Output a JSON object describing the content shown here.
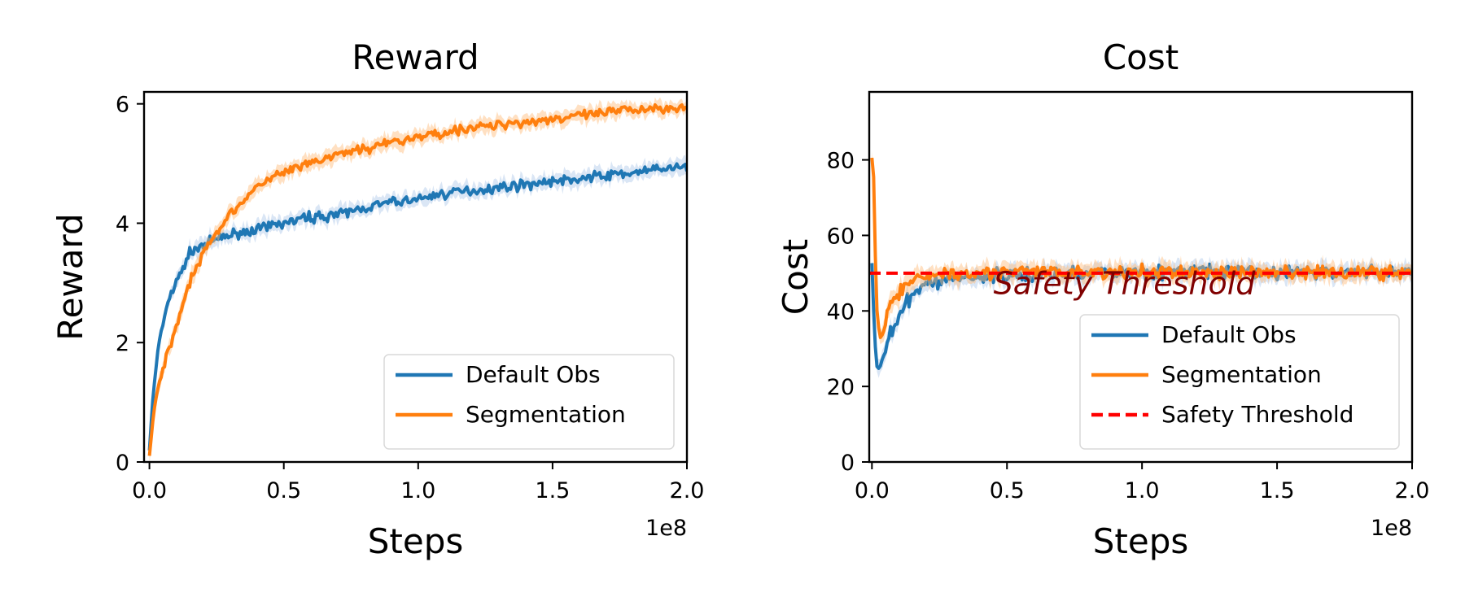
{
  "chart_data": [
    {
      "type": "line",
      "title": "Reward",
      "xlabel": "Steps",
      "ylabel": "Reward",
      "x_offset_label": "1e8",
      "xlim": [
        -0.02,
        2.0
      ],
      "ylim": [
        0,
        6.2
      ],
      "xticks": [
        0.0,
        0.5,
        1.0,
        1.5,
        2.0
      ],
      "xtick_labels": [
        "0.0",
        "0.5",
        "1.0",
        "1.5",
        "2.0"
      ],
      "yticks": [
        0,
        2,
        4,
        6
      ],
      "ytick_labels": [
        "0",
        "2",
        "4",
        "6"
      ],
      "grid": false,
      "legend_position": "lower right",
      "series": [
        {
          "name": "Default Obs",
          "color": "#1f77b4",
          "band_color": "#aec7e8",
          "x": [
            0.0,
            0.01,
            0.02,
            0.03,
            0.05,
            0.07,
            0.1,
            0.13,
            0.15,
            0.18,
            0.2,
            0.25,
            0.3,
            0.35,
            0.4,
            0.45,
            0.5,
            0.6,
            0.7,
            0.8,
            0.9,
            1.0,
            1.1,
            1.2,
            1.3,
            1.4,
            1.5,
            1.6,
            1.7,
            1.8,
            1.9,
            2.0
          ],
          "y": [
            0.2,
            0.9,
            1.4,
            1.8,
            2.3,
            2.7,
            3.0,
            3.3,
            3.5,
            3.6,
            3.65,
            3.72,
            3.8,
            3.85,
            3.9,
            3.95,
            4.0,
            4.1,
            4.15,
            4.25,
            4.35,
            4.4,
            4.5,
            4.55,
            4.6,
            4.65,
            4.7,
            4.75,
            4.8,
            4.85,
            4.9,
            4.95
          ]
        },
        {
          "name": "Segmentation",
          "color": "#ff7f0e",
          "band_color": "#ffbb78",
          "x": [
            0.0,
            0.01,
            0.02,
            0.03,
            0.05,
            0.07,
            0.1,
            0.13,
            0.15,
            0.18,
            0.2,
            0.25,
            0.3,
            0.35,
            0.4,
            0.45,
            0.5,
            0.6,
            0.7,
            0.8,
            0.9,
            1.0,
            1.1,
            1.2,
            1.3,
            1.4,
            1.5,
            1.6,
            1.7,
            1.8,
            1.9,
            2.0
          ],
          "y": [
            0.1,
            0.6,
            0.95,
            1.2,
            1.55,
            1.85,
            2.3,
            2.7,
            3.0,
            3.3,
            3.55,
            3.85,
            4.15,
            4.4,
            4.6,
            4.75,
            4.85,
            5.0,
            5.15,
            5.25,
            5.35,
            5.45,
            5.52,
            5.6,
            5.65,
            5.7,
            5.75,
            5.8,
            5.85,
            5.9,
            5.93,
            5.95
          ]
        }
      ]
    },
    {
      "type": "line",
      "title": "Cost",
      "xlabel": "Steps",
      "ylabel": "Cost",
      "x_offset_label": "1e8",
      "xlim": [
        -0.01,
        2.0
      ],
      "ylim": [
        0,
        98
      ],
      "xticks": [
        0.0,
        0.5,
        1.0,
        1.5,
        2.0
      ],
      "xtick_labels": [
        "0.0",
        "0.5",
        "1.0",
        "1.5",
        "2.0"
      ],
      "yticks": [
        0,
        20,
        40,
        60,
        80
      ],
      "ytick_labels": [
        "0",
        "20",
        "40",
        "60",
        "80"
      ],
      "grid": false,
      "legend_position": "lower right",
      "annotation": {
        "text": "Safety Threshold",
        "x": 0.45,
        "y": 44
      },
      "threshold": {
        "name": "Safety Threshold",
        "value": 50,
        "color": "#ff0000",
        "style": "dashed"
      },
      "series": [
        {
          "name": "Default Obs",
          "color": "#1f77b4",
          "band_color": "#aec7e8",
          "x": [
            0.0,
            0.01,
            0.02,
            0.03,
            0.04,
            0.05,
            0.07,
            0.1,
            0.13,
            0.16,
            0.2,
            0.25,
            0.3,
            0.4,
            0.5,
            0.6,
            0.7,
            0.8,
            0.9,
            1.0,
            1.1,
            1.2,
            1.3,
            1.4,
            1.5,
            1.6,
            1.7,
            1.8,
            1.9,
            2.0
          ],
          "y": [
            53,
            32,
            24,
            25,
            28,
            30,
            34,
            38,
            42,
            45,
            47,
            48,
            48.5,
            49,
            49.5,
            49.5,
            50,
            50,
            50,
            50.5,
            50,
            51,
            50,
            50.5,
            50,
            50.5,
            50,
            50.5,
            50,
            50
          ]
        },
        {
          "name": "Segmentation",
          "color": "#ff7f0e",
          "band_color": "#ffbb78",
          "x": [
            0.0,
            0.005,
            0.01,
            0.02,
            0.03,
            0.04,
            0.05,
            0.07,
            0.1,
            0.13,
            0.16,
            0.2,
            0.25,
            0.3,
            0.4,
            0.5,
            0.6,
            0.7,
            0.8,
            0.9,
            1.0,
            1.1,
            1.2,
            1.3,
            1.4,
            1.5,
            1.6,
            1.7,
            1.8,
            1.9,
            2.0
          ],
          "y": [
            81,
            81,
            60,
            38,
            33,
            35,
            38,
            42,
            45,
            47,
            48,
            49,
            50,
            50,
            50.5,
            50,
            50.5,
            50,
            50.5,
            50,
            50,
            50.5,
            50,
            50.5,
            50,
            50.5,
            50,
            50,
            50.5,
            50,
            50
          ]
        }
      ]
    }
  ]
}
